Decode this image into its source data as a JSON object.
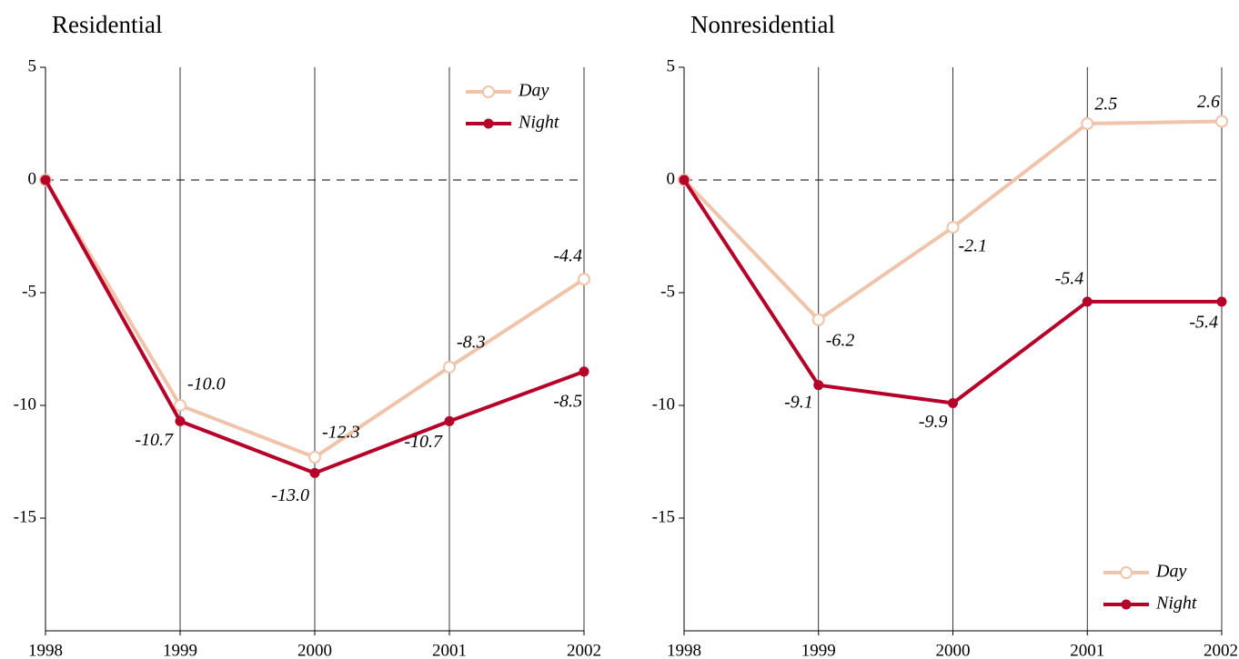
{
  "chart_data": [
    {
      "type": "line",
      "title": "Residential",
      "categories": [
        "1998",
        "1999",
        "2000",
        "2001",
        "2002"
      ],
      "series": [
        {
          "name": "Day",
          "color": "#f0c4ab",
          "values": [
            0,
            -10,
            -12.3,
            -8.3,
            -4.4
          ],
          "value_labels": [
            null,
            "-10.0",
            "-12.3",
            "-8.3",
            "-4.4"
          ]
        },
        {
          "name": "Night",
          "color": "#b5002a",
          "values": [
            0,
            -10.7,
            -13,
            -10.7,
            -8.5
          ],
          "value_labels": [
            null,
            "-10.7",
            "-13.0",
            "-10.7",
            "-8.5"
          ]
        }
      ],
      "ylim": [
        -20,
        5
      ],
      "yticks": [
        -15,
        -10,
        -5,
        0,
        5
      ],
      "grid": true,
      "legend": "upper right"
    },
    {
      "type": "line",
      "title": "Nonresidential",
      "categories": [
        "1998",
        "1999",
        "2000",
        "2001",
        "2002"
      ],
      "series": [
        {
          "name": "Day",
          "color": "#f0c4ab",
          "values": [
            0,
            -6.2,
            -2.1,
            2.5,
            2.6
          ],
          "value_labels": [
            null,
            "-6.2",
            "-2.1",
            "2.5",
            "2.6"
          ]
        },
        {
          "name": "Night",
          "color": "#b5002a",
          "values": [
            0,
            -9.1,
            -9.9,
            -5.4,
            -5.4
          ],
          "value_labels": [
            null,
            "-9.1",
            "-9.9",
            "-5.4",
            "-5.4"
          ]
        }
      ],
      "ylim": [
        -20,
        5
      ],
      "yticks": [
        -15,
        -10,
        -5,
        0,
        5
      ],
      "grid": true,
      "legend": "lower right"
    }
  ]
}
